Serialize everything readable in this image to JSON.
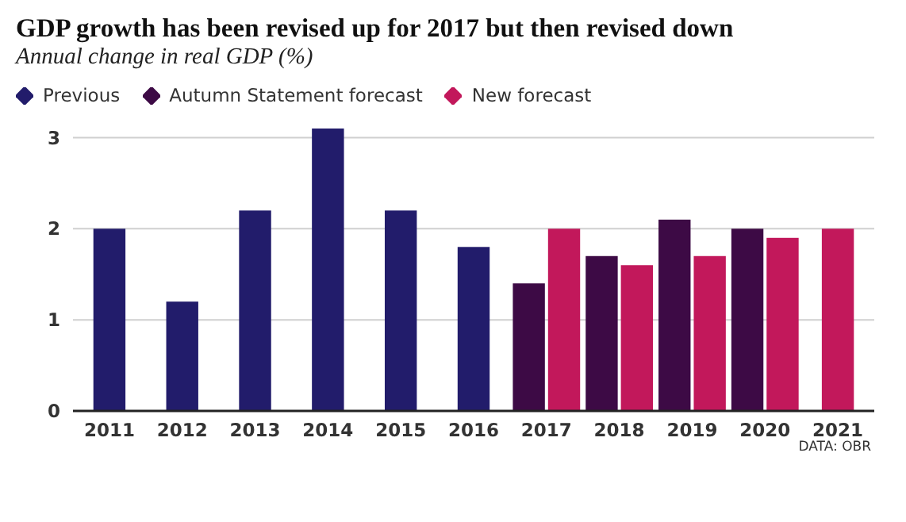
{
  "chart_data": {
    "type": "bar",
    "title": "GDP growth has been revised up for 2017 but then revised down",
    "subtitle": "Annual change in real GDP (%)",
    "categories": [
      "2011",
      "2012",
      "2013",
      "2014",
      "2015",
      "2016",
      "2017",
      "2018",
      "2019",
      "2020",
      "2021"
    ],
    "series": [
      {
        "name": "Previous",
        "color": "#221c6b",
        "values": [
          2.0,
          1.2,
          2.2,
          3.1,
          2.2,
          1.8,
          null,
          null,
          null,
          null,
          null
        ]
      },
      {
        "name": "Autumn Statement forecast",
        "color": "#3d0a45",
        "values": [
          null,
          null,
          null,
          null,
          null,
          null,
          1.4,
          1.7,
          2.1,
          2.0,
          null
        ]
      },
      {
        "name": "New forecast",
        "color": "#c2185b",
        "values": [
          null,
          null,
          null,
          null,
          null,
          null,
          2.0,
          1.6,
          1.7,
          1.9,
          2.0
        ]
      }
    ],
    "ylim": [
      0,
      3.1
    ],
    "yticks": [
      0,
      1,
      2,
      3
    ],
    "grid": "y",
    "legend": "top left",
    "annotations": [
      "DATA: OBR"
    ]
  }
}
